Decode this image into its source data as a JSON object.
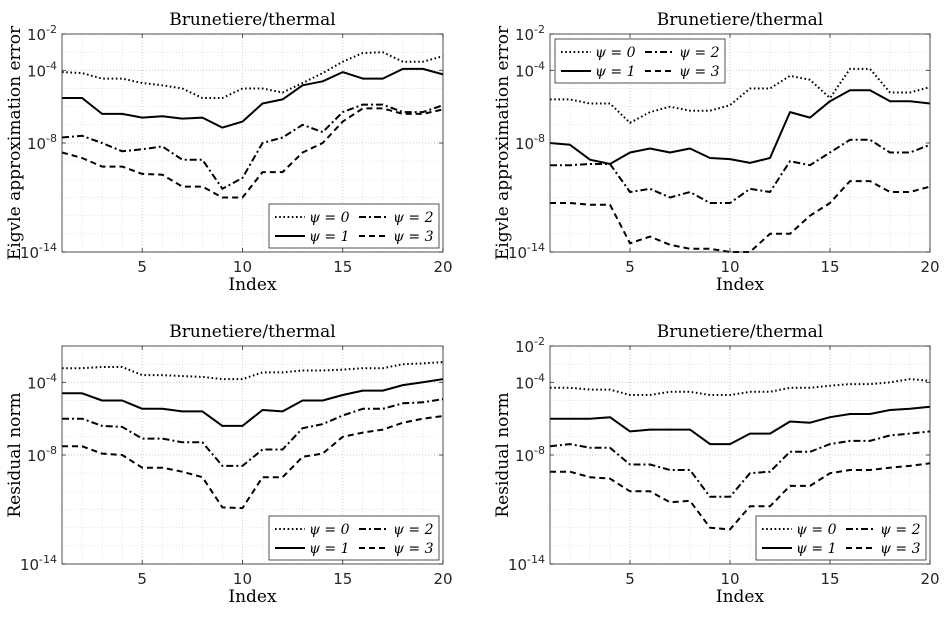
{
  "figure": {
    "panels_count": 4
  },
  "chart_data": [
    {
      "type": "line",
      "title": "Brunetiere/thermal",
      "xlabel": "Index",
      "ylabel": "Eigvle approximation error",
      "xlim": [
        1,
        20
      ],
      "ylim": [
        1e-14,
        0.01
      ],
      "yscale": "log",
      "grid": true,
      "xticks": [
        5,
        10,
        15,
        20
      ],
      "yticks": [
        {
          "value": 1e-14,
          "label": "10-14"
        },
        {
          "value": 1e-08,
          "label": "10-8"
        },
        {
          "value": 0.0001,
          "label": "10-4"
        },
        {
          "value": 0.01,
          "label": "10-2"
        }
      ],
      "legend_position": "bottom-right",
      "x": [
        1,
        2,
        3,
        4,
        5,
        6,
        7,
        8,
        9,
        10,
        11,
        12,
        13,
        14,
        15,
        16,
        17,
        18,
        19,
        20
      ],
      "series": [
        {
          "name": "ψ = 0",
          "style": "dotted",
          "values": [
            8e-05,
            7e-05,
            3.5e-05,
            3.5e-05,
            2e-05,
            1.5e-05,
            1e-05,
            3e-06,
            3e-06,
            1e-05,
            1e-05,
            6e-06,
            2e-05,
            7e-05,
            0.0003,
            0.0009,
            0.001,
            0.0003,
            0.0003,
            0.0006
          ]
        },
        {
          "name": "ψ = 1",
          "style": "solid",
          "values": [
            3e-06,
            3e-06,
            4e-07,
            4e-07,
            2.5e-07,
            3e-07,
            2.2e-07,
            2.5e-07,
            7e-08,
            1.5e-07,
            1.5e-06,
            2.5e-06,
            1.5e-05,
            2.5e-05,
            8e-05,
            3.5e-05,
            3.5e-05,
            0.00012,
            0.00012,
            6e-05
          ]
        },
        {
          "name": "ψ = 2",
          "style": "dashdot",
          "values": [
            2e-08,
            2.5e-08,
            1e-08,
            3.5e-09,
            4.5e-09,
            6.5e-09,
            1.2e-09,
            1.2e-09,
            3e-11,
            1.2e-10,
            1e-08,
            2e-08,
            1e-07,
            4e-08,
            5e-07,
            1.3e-06,
            1.3e-06,
            5e-07,
            5e-07,
            1.2e-06
          ]
        },
        {
          "name": "ψ = 3",
          "style": "dashed",
          "values": [
            3e-09,
            1.5e-09,
            5e-10,
            5e-10,
            2e-10,
            1.8e-10,
            4e-11,
            4e-11,
            1e-11,
            1e-11,
            2.5e-10,
            2.5e-10,
            3e-09,
            1e-08,
            1.5e-07,
            8e-07,
            8e-07,
            4e-07,
            4e-07,
            7e-07
          ]
        }
      ]
    },
    {
      "type": "line",
      "title": "Brunetiere/thermal",
      "xlabel": "Index",
      "ylabel": "Eigvle approximation error",
      "xlim": [
        1,
        20
      ],
      "ylim": [
        1e-14,
        0.01
      ],
      "yscale": "log",
      "grid": true,
      "xticks": [
        5,
        10,
        15,
        20
      ],
      "yticks": [
        {
          "value": 1e-14,
          "label": "10-14"
        },
        {
          "value": 1e-08,
          "label": "10-8"
        },
        {
          "value": 0.0001,
          "label": "10-4"
        },
        {
          "value": 0.01,
          "label": "10-2"
        }
      ],
      "legend_position": "top-left",
      "x": [
        1,
        2,
        3,
        4,
        5,
        6,
        7,
        8,
        9,
        10,
        11,
        12,
        13,
        14,
        15,
        16,
        17,
        18,
        19,
        20
      ],
      "series": [
        {
          "name": "ψ = 0",
          "style": "dotted",
          "values": [
            2.5e-06,
            2.5e-06,
            1.5e-06,
            1.5e-06,
            1.3e-07,
            5e-07,
            1e-06,
            6e-07,
            6e-07,
            1.2e-06,
            1e-05,
            1e-05,
            5e-05,
            3e-05,
            3e-06,
            0.00012,
            0.00012,
            6e-06,
            6e-06,
            1.2e-05
          ]
        },
        {
          "name": "ψ = 1",
          "style": "solid",
          "values": [
            1e-08,
            8e-09,
            1.2e-09,
            7e-10,
            3e-09,
            5e-09,
            3e-09,
            5e-09,
            1.5e-09,
            1.3e-09,
            8e-10,
            1.5e-09,
            5e-07,
            2.5e-07,
            2e-06,
            8e-06,
            8e-06,
            2e-06,
            2e-06,
            1.5e-06
          ]
        },
        {
          "name": "ψ = 2",
          "style": "dashdot",
          "values": [
            6e-10,
            6e-10,
            7e-10,
            7e-10,
            2e-11,
            3e-11,
            1e-11,
            2e-11,
            5e-12,
            5e-12,
            3e-11,
            2e-11,
            1e-09,
            6e-10,
            3e-09,
            1.5e-08,
            1.5e-08,
            3e-09,
            3e-09,
            8e-09
          ]
        },
        {
          "name": "ψ = 3",
          "style": "dashed",
          "values": [
            5e-12,
            5e-12,
            4e-12,
            4e-12,
            3e-14,
            7e-14,
            2.5e-14,
            1.5e-14,
            1.5e-14,
            1e-14,
            1e-14,
            1e-13,
            1e-13,
            1e-12,
            5e-12,
            8e-11,
            8e-11,
            2e-11,
            2e-11,
            4e-11
          ]
        }
      ]
    },
    {
      "type": "line",
      "title": "Brunetiere/thermal",
      "xlabel": "Index",
      "ylabel": "Residual norm",
      "xlim": [
        1,
        20
      ],
      "ylim": [
        1e-14,
        0.01
      ],
      "yscale": "log",
      "grid": true,
      "xticks": [
        5,
        10,
        15,
        20
      ],
      "yticks": [
        {
          "value": 1e-14,
          "label": "10-14"
        },
        {
          "value": 1e-08,
          "label": "10-8"
        },
        {
          "value": 0.0001,
          "label": "10-4"
        }
      ],
      "legend_position": "bottom-right",
      "x": [
        1,
        2,
        3,
        4,
        5,
        6,
        7,
        8,
        9,
        10,
        11,
        12,
        13,
        14,
        15,
        16,
        17,
        18,
        19,
        20
      ],
      "series": [
        {
          "name": "ψ = 0",
          "style": "dotted",
          "values": [
            0.0006,
            0.0006,
            0.0007,
            0.0007,
            0.00025,
            0.00025,
            0.00022,
            0.0002,
            0.00015,
            0.00015,
            0.00035,
            0.00035,
            0.00045,
            0.00045,
            0.0005,
            0.0006,
            0.0006,
            0.001,
            0.0011,
            0.0013
          ]
        },
        {
          "name": "ψ = 1",
          "style": "solid",
          "values": [
            2.5e-05,
            2.5e-05,
            1e-05,
            1e-05,
            3.5e-06,
            3.5e-06,
            2.5e-06,
            2.5e-06,
            4e-07,
            4e-07,
            3e-06,
            2.5e-06,
            1e-05,
            1e-05,
            2e-05,
            3.5e-05,
            3.5e-05,
            7e-05,
            0.0001,
            0.00015
          ]
        },
        {
          "name": "ψ = 2",
          "style": "dashdot",
          "values": [
            1e-06,
            1e-06,
            4e-07,
            3.5e-07,
            8e-08,
            8e-08,
            5e-08,
            5e-08,
            2.5e-09,
            2.5e-09,
            2e-08,
            2e-08,
            3e-07,
            5e-07,
            1.5e-06,
            3.5e-06,
            3.5e-06,
            7e-06,
            8e-06,
            1.2e-05
          ]
        },
        {
          "name": "ψ = 3",
          "style": "dashed",
          "values": [
            3e-08,
            3e-08,
            1.2e-08,
            1e-08,
            2e-09,
            2e-09,
            1.2e-09,
            6e-10,
            1.3e-11,
            1.2e-11,
            6e-10,
            6e-10,
            8e-09,
            1.2e-08,
            1e-07,
            1.7e-07,
            2.5e-07,
            6e-07,
            1e-06,
            1.4e-06
          ]
        }
      ]
    },
    {
      "type": "line",
      "title": "Brunetiere/thermal",
      "xlabel": "Index",
      "ylabel": "Residual norm",
      "xlim": [
        1,
        20
      ],
      "ylim": [
        1e-14,
        0.01
      ],
      "yscale": "log",
      "grid": true,
      "xticks": [
        5,
        10,
        15,
        20
      ],
      "yticks": [
        {
          "value": 1e-14,
          "label": "10-14"
        },
        {
          "value": 1e-08,
          "label": "10-8"
        },
        {
          "value": 0.0001,
          "label": "10-4"
        },
        {
          "value": 0.01,
          "label": "10-2"
        }
      ],
      "legend_position": "bottom-right",
      "x": [
        1,
        2,
        3,
        4,
        5,
        6,
        7,
        8,
        9,
        10,
        11,
        12,
        13,
        14,
        15,
        16,
        17,
        18,
        19,
        20
      ],
      "series": [
        {
          "name": "ψ = 0",
          "style": "dotted",
          "values": [
            5e-05,
            5e-05,
            4e-05,
            4e-05,
            2e-05,
            2e-05,
            3e-05,
            3e-05,
            2e-05,
            2e-05,
            3e-05,
            3e-05,
            5e-05,
            5e-05,
            6.5e-05,
            8e-05,
            8e-05,
            0.0001,
            0.00015,
            0.00012
          ]
        },
        {
          "name": "ψ = 1",
          "style": "solid",
          "values": [
            1e-06,
            1e-06,
            1e-06,
            1.2e-06,
            2e-07,
            2.5e-07,
            2.5e-07,
            2.5e-07,
            4e-08,
            4e-08,
            1.5e-07,
            1.5e-07,
            7e-07,
            6e-07,
            1.2e-06,
            1.8e-06,
            1.8e-06,
            3e-06,
            3.5e-06,
            4.5e-06
          ]
        },
        {
          "name": "ψ = 2",
          "style": "dashdot",
          "values": [
            3e-08,
            4e-08,
            2.5e-08,
            2.5e-08,
            3e-09,
            3e-09,
            1.5e-09,
            1.5e-09,
            5e-11,
            5e-11,
            1e-09,
            1.2e-09,
            1.5e-08,
            1.5e-08,
            4e-08,
            6e-08,
            6e-08,
            1.2e-07,
            1.5e-07,
            2e-07
          ]
        },
        {
          "name": "ψ = 3",
          "style": "dashed",
          "values": [
            1.2e-09,
            1.2e-09,
            6e-10,
            5e-10,
            1e-10,
            1e-10,
            2.5e-11,
            3e-11,
            1e-12,
            8e-13,
            1.5e-11,
            1.5e-11,
            2e-10,
            2e-10,
            1e-09,
            1.5e-09,
            1.5e-09,
            2e-09,
            2.5e-09,
            3.5e-09
          ]
        }
      ]
    }
  ]
}
